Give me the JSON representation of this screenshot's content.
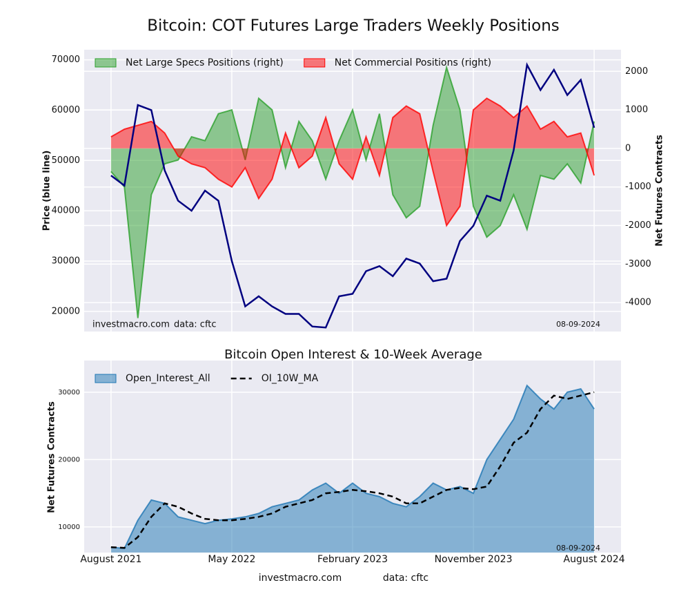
{
  "chart_data": [
    {
      "type": "line",
      "title": "Bitcoin: COT Futures Large Traders Weekly Positions",
      "ylabel": "Price (blue line)",
      "y2label": "Net Futures Contracts",
      "source": "investmacro.com",
      "data_note": "data: cftc",
      "date_note": "08-09-2024",
      "legend": "upper left",
      "grid": true,
      "xlim": [
        "2021-06",
        "2024-10"
      ],
      "ylim": [
        16000,
        72000
      ],
      "yticks": [
        20000,
        30000,
        40000,
        50000,
        60000,
        70000
      ],
      "y2lim": [
        -4750,
        2560
      ],
      "y2ticks": [
        -4000,
        -3000,
        -2000,
        -1000,
        0,
        1000,
        2000
      ],
      "x": [
        "2021-08",
        "2021-09",
        "2021-10",
        "2021-11",
        "2021-12",
        "2022-01",
        "2022-02",
        "2022-03",
        "2022-04",
        "2022-05",
        "2022-06",
        "2022-07",
        "2022-08",
        "2022-09",
        "2022-10",
        "2022-11",
        "2022-12",
        "2023-01",
        "2023-02",
        "2023-03",
        "2023-04",
        "2023-05",
        "2023-06",
        "2023-07",
        "2023-08",
        "2023-09",
        "2023-10",
        "2023-11",
        "2023-12",
        "2024-01",
        "2024-02",
        "2024-03",
        "2024-04",
        "2024-05",
        "2024-06",
        "2024-07",
        "2024-08"
      ],
      "series": [
        {
          "name": "Net Large Specs Positions (right)",
          "color": "#2ca02c",
          "style": "area",
          "axis": "y2",
          "values": [
            -600,
            -1000,
            -4400,
            -1200,
            -400,
            -300,
            300,
            200,
            900,
            1000,
            -300,
            1300,
            1000,
            -500,
            700,
            200,
            -800,
            200,
            1000,
            -300,
            900,
            -1200,
            -1800,
            -1500,
            600,
            2100,
            1000,
            -1500,
            -2300,
            -2000,
            -1200,
            -2100,
            -700,
            -800,
            -400,
            -900,
            700
          ]
        },
        {
          "name": "Net Commercial Positions (right)",
          "color": "#ff0000",
          "style": "area",
          "axis": "y2",
          "values": [
            300,
            500,
            600,
            700,
            400,
            -200,
            -400,
            -500,
            -800,
            -1000,
            -500,
            -1300,
            -800,
            400,
            -500,
            -200,
            800,
            -400,
            -800,
            300,
            -700,
            800,
            1100,
            900,
            -600,
            -2000,
            -1500,
            1000,
            1300,
            1100,
            800,
            1100,
            500,
            700,
            300,
            400,
            -700
          ]
        },
        {
          "name": "Price",
          "color": "#000080",
          "style": "line",
          "values": [
            47000,
            45000,
            61000,
            60000,
            48000,
            42000,
            40000,
            44000,
            42000,
            30000,
            21000,
            23000,
            21000,
            19500,
            19500,
            17000,
            16800,
            23000,
            23500,
            28000,
            29000,
            27000,
            30500,
            29500,
            26000,
            26500,
            34000,
            37000,
            43000,
            42000,
            52000,
            69000,
            64000,
            68000,
            63000,
            66000,
            56500
          ]
        }
      ]
    },
    {
      "type": "area",
      "title": "Bitcoin Open Interest & 10-Week Average",
      "ylabel": "Net Futures Contracts",
      "date_note": "08-09-2024",
      "source": "investmacro.com",
      "data_note": "data: cftc",
      "legend": "upper left",
      "grid": true,
      "xlim": [
        "2021-06",
        "2024-10"
      ],
      "xticks": [
        {
          "value": "2021-08",
          "label": "August 2021"
        },
        {
          "value": "2022-05",
          "label": "May 2022"
        },
        {
          "value": "2023-02",
          "label": "February 2023"
        },
        {
          "value": "2023-11",
          "label": "November 2023"
        },
        {
          "value": "2024-08",
          "label": "August 2024"
        }
      ],
      "ylim": [
        6200,
        34700
      ],
      "yticks": [
        10000,
        20000,
        30000
      ],
      "x": [
        "2021-08",
        "2021-09",
        "2021-10",
        "2021-11",
        "2021-12",
        "2022-01",
        "2022-02",
        "2022-03",
        "2022-04",
        "2022-05",
        "2022-06",
        "2022-07",
        "2022-08",
        "2022-09",
        "2022-10",
        "2022-11",
        "2022-12",
        "2023-01",
        "2023-02",
        "2023-03",
        "2023-04",
        "2023-05",
        "2023-06",
        "2023-07",
        "2023-08",
        "2023-09",
        "2023-10",
        "2023-11",
        "2023-12",
        "2024-01",
        "2024-02",
        "2024-03",
        "2024-04",
        "2024-05",
        "2024-06",
        "2024-07",
        "2024-08"
      ],
      "series": [
        {
          "name": "Open_Interest_All",
          "color": "#1f77b4",
          "style": "area",
          "values": [
            7000,
            6800,
            11000,
            14000,
            13500,
            11500,
            11000,
            10500,
            11000,
            11200,
            11500,
            12000,
            13000,
            13500,
            14000,
            15500,
            16500,
            15000,
            16500,
            15000,
            14500,
            13500,
            13000,
            14500,
            16500,
            15500,
            16000,
            15000,
            20000,
            23000,
            26000,
            31000,
            29000,
            27500,
            30000,
            30500,
            27500
          ]
        },
        {
          "name": "OI_10W_MA",
          "color": "#000000",
          "style": "dashed",
          "values": [
            7000,
            6900,
            8500,
            11500,
            13500,
            13000,
            12000,
            11200,
            11000,
            11000,
            11200,
            11500,
            12000,
            13000,
            13500,
            14000,
            15000,
            15200,
            15500,
            15300,
            15000,
            14500,
            13500,
            13500,
            14500,
            15500,
            15800,
            15600,
            16000,
            19000,
            22500,
            24000,
            27500,
            29500,
            29000,
            29500,
            30000
          ]
        }
      ]
    }
  ]
}
